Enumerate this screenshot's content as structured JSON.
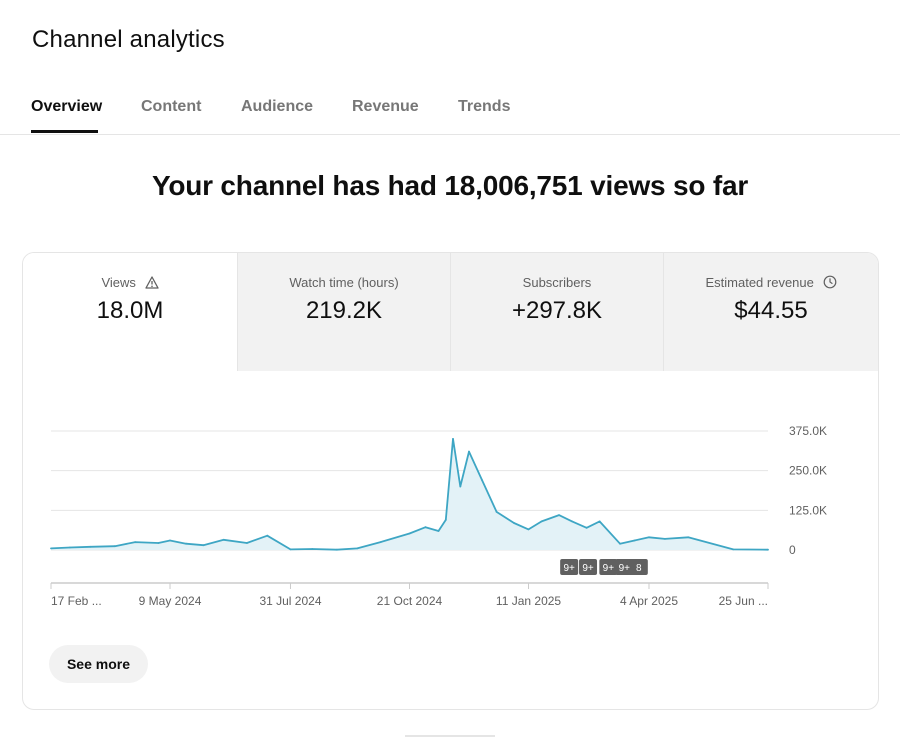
{
  "header": {
    "title": "Channel analytics"
  },
  "tabs": [
    {
      "label": "Overview"
    },
    {
      "label": "Content"
    },
    {
      "label": "Audience"
    },
    {
      "label": "Revenue"
    },
    {
      "label": "Trends"
    }
  ],
  "active_tab": "Overview",
  "headline": "Your channel has had 18,006,751 views so far",
  "metrics": [
    {
      "label": "Views",
      "value": "18.0M",
      "icon": "warning-icon"
    },
    {
      "label": "Watch time (hours)",
      "value": "219.2K"
    },
    {
      "label": "Subscribers",
      "value": "+297.8K"
    },
    {
      "label": "Estimated revenue",
      "value": "$44.55",
      "icon": "clock-icon"
    }
  ],
  "see_more_label": "See more",
  "colors": {
    "accent": "#3ea6c4",
    "fill": "#e3f2f7",
    "grid": "#e5e5e5",
    "badge": "#606060"
  },
  "chart_data": {
    "type": "area",
    "metric": "Views",
    "x": [
      "2024-02-17",
      "2024-03-01",
      "2024-03-15",
      "2024-04-01",
      "2024-04-15",
      "2024-05-01",
      "2024-05-09",
      "2024-05-20",
      "2024-06-01",
      "2024-06-15",
      "2024-07-01",
      "2024-07-15",
      "2024-07-31",
      "2024-08-15",
      "2024-09-01",
      "2024-09-15",
      "2024-10-01",
      "2024-10-21",
      "2024-11-01",
      "2024-11-10",
      "2024-11-15",
      "2024-11-20",
      "2024-11-25",
      "2024-12-01",
      "2024-12-10",
      "2024-12-20",
      "2025-01-01",
      "2025-01-11",
      "2025-01-20",
      "2025-02-01",
      "2025-02-10",
      "2025-02-20",
      "2025-03-01",
      "2025-03-15",
      "2025-03-25",
      "2025-04-04",
      "2025-04-15",
      "2025-05-01",
      "2025-06-01",
      "2025-06-25"
    ],
    "values": [
      5000,
      8000,
      10000,
      12000,
      25000,
      22000,
      30000,
      20000,
      15000,
      32000,
      22000,
      45000,
      2000,
      3000,
      1000,
      5000,
      25000,
      52000,
      72000,
      60000,
      95000,
      350000,
      200000,
      310000,
      220000,
      120000,
      85000,
      65000,
      90000,
      110000,
      90000,
      70000,
      90000,
      20000,
      30000,
      40000,
      35000,
      40000,
      2000,
      1000
    ],
    "ylim": [
      0,
      375000
    ],
    "y_ticks": [
      "375.0K",
      "250.0K",
      "125.0K",
      "0"
    ],
    "y_tick_values": [
      375000,
      250000,
      125000,
      0
    ],
    "x_tick_labels": [
      "17 Feb ...",
      "9 May 2024",
      "31 Jul 2024",
      "21 Oct 2024",
      "11 Jan 2025",
      "4 Apr 2025",
      "25 Jun ..."
    ],
    "x_tick_dates": [
      "2024-02-17",
      "2024-05-09",
      "2024-07-31",
      "2024-10-21",
      "2025-01-11",
      "2025-04-04",
      "2025-06-25"
    ],
    "annotations": [
      "9+",
      "9+",
      "9+",
      "9+",
      "8"
    ],
    "annotation_dates": [
      "2025-02-08",
      "2025-02-21",
      "2025-03-07",
      "2025-03-18",
      "2025-03-28"
    ],
    "grid": true,
    "legend": "none"
  }
}
